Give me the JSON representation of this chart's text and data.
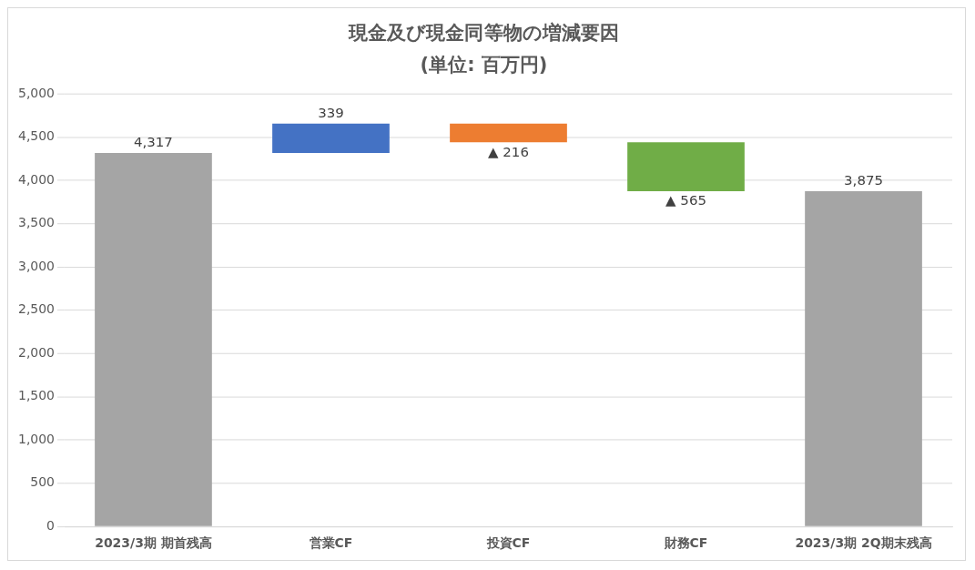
{
  "chart_data": {
    "type": "bar",
    "title": "現金及び現金同等物の増減要因",
    "subtitle": "(単位: 百万円)",
    "categories": [
      "2023/3期 期首残高",
      "営業CF",
      "投資CF",
      "財務CF",
      "2023/3期 2Q期末残高"
    ],
    "values": [
      4317,
      339,
      -216,
      -565,
      3875
    ],
    "base": [
      0,
      4317,
      4656,
      4440,
      0
    ],
    "colors": [
      "#a5a5a5",
      "#4472c4",
      "#ed7d31",
      "#70ad47",
      "#a5a5a5"
    ],
    "value_labels": [
      "4,317",
      "339",
      "▲ 216",
      "▲ 565",
      "3,875"
    ],
    "ylim": [
      0,
      5000
    ],
    "yticks": [
      {
        "value": 0,
        "label": "0"
      },
      {
        "value": 500,
        "label": "500"
      },
      {
        "value": 1000,
        "label": "1,000"
      },
      {
        "value": 1500,
        "label": "1,500"
      },
      {
        "value": 2000,
        "label": "2,000"
      },
      {
        "value": 2500,
        "label": "2,500"
      },
      {
        "value": 3000,
        "label": "3,000"
      },
      {
        "value": 3500,
        "label": "3,500"
      },
      {
        "value": 4000,
        "label": "4,000"
      },
      {
        "value": 4500,
        "label": "4,500"
      },
      {
        "value": 5000,
        "label": "5,000"
      }
    ],
    "grid": "y",
    "legend": false
  }
}
